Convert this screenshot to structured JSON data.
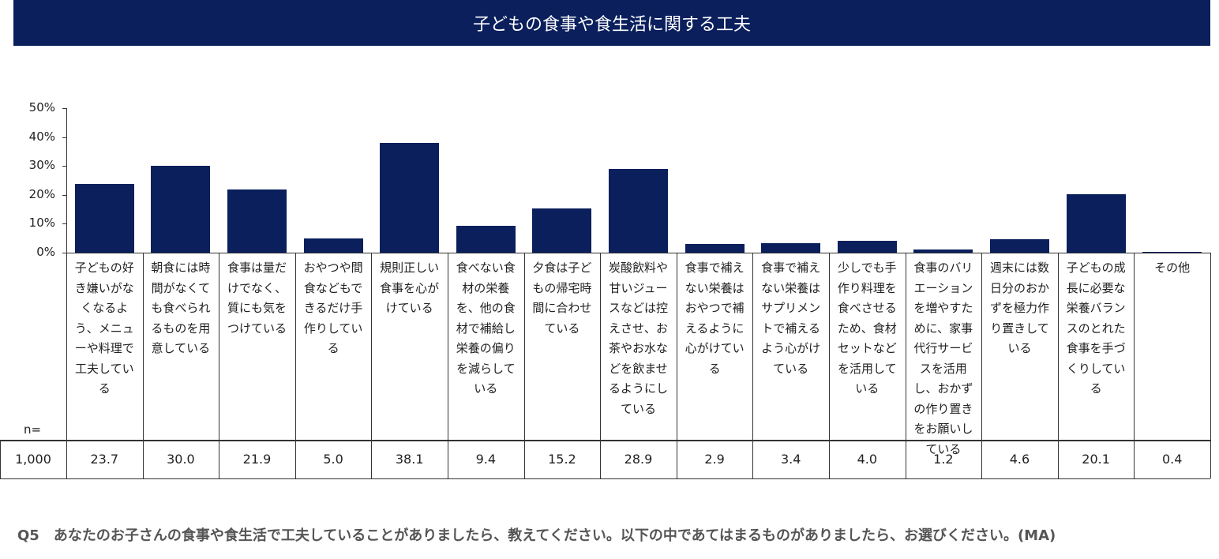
{
  "title": "子どもの食事や食生活に関する工夫",
  "n_label": "n=",
  "n_value": "1,000",
  "footnote": "Q5　あなたのお子さんの食事や食生活で工夫していることがありましたら、教えてください。以下の中であてはまるものがありましたら、お選びください。(MA)",
  "colors": {
    "bar": "#0a1f5c",
    "title_bg": "#0a1f5c"
  },
  "chart_data": {
    "type": "bar",
    "title": "子どもの食事や食生活に関する工夫",
    "ylim": [
      0,
      50
    ],
    "yticks": [
      "0%",
      "10%",
      "20%",
      "30%",
      "40%",
      "50%"
    ],
    "grid": false,
    "legend": "none",
    "categories": [
      "子どもの好き嫌いがなくなるよう、メニューや料理で工夫している",
      "朝食には時間がなくても食べられるものを用意している",
      "食事は量だけでなく、質にも気をつけている",
      "おやつや間食などもできるだけ手作りしている",
      "規則正しい食事を心がけている",
      "食べない食材の栄養を、他の食材で補給し栄養の偏りを減らしている",
      "夕食は子どもの帰宅時間に合わせている",
      "炭酸飲料や甘いジュースなどは控えさせ、お茶やお水などを飲ませるようにしている",
      "食事で補えない栄養はおやつで補えるように心がけている",
      "食事で補えない栄養はサプリメントで補えるよう心がけている",
      "少しでも手作り料理を食べさせるため、食材セットなどを活用している",
      "食事のバリエーションを増やすために、家事代行サービスを活用し、おかずの作り置きをお願いしている",
      "週末には数日分のおかずを極力作り置きしている",
      "子どもの成長に必要な栄養バランスのとれた食事を手づくりしている",
      "その他"
    ],
    "values": [
      23.7,
      30.0,
      21.9,
      5.0,
      38.1,
      9.4,
      15.2,
      28.9,
      2.9,
      3.4,
      4.0,
      1.2,
      4.6,
      20.1,
      0.4
    ],
    "value_labels": [
      "23.7",
      "30.0",
      "21.9",
      "5.0",
      "38.1",
      "9.4",
      "15.2",
      "28.9",
      "2.9",
      "3.4",
      "4.0",
      "1.2",
      "4.6",
      "20.1",
      "0.4"
    ]
  }
}
